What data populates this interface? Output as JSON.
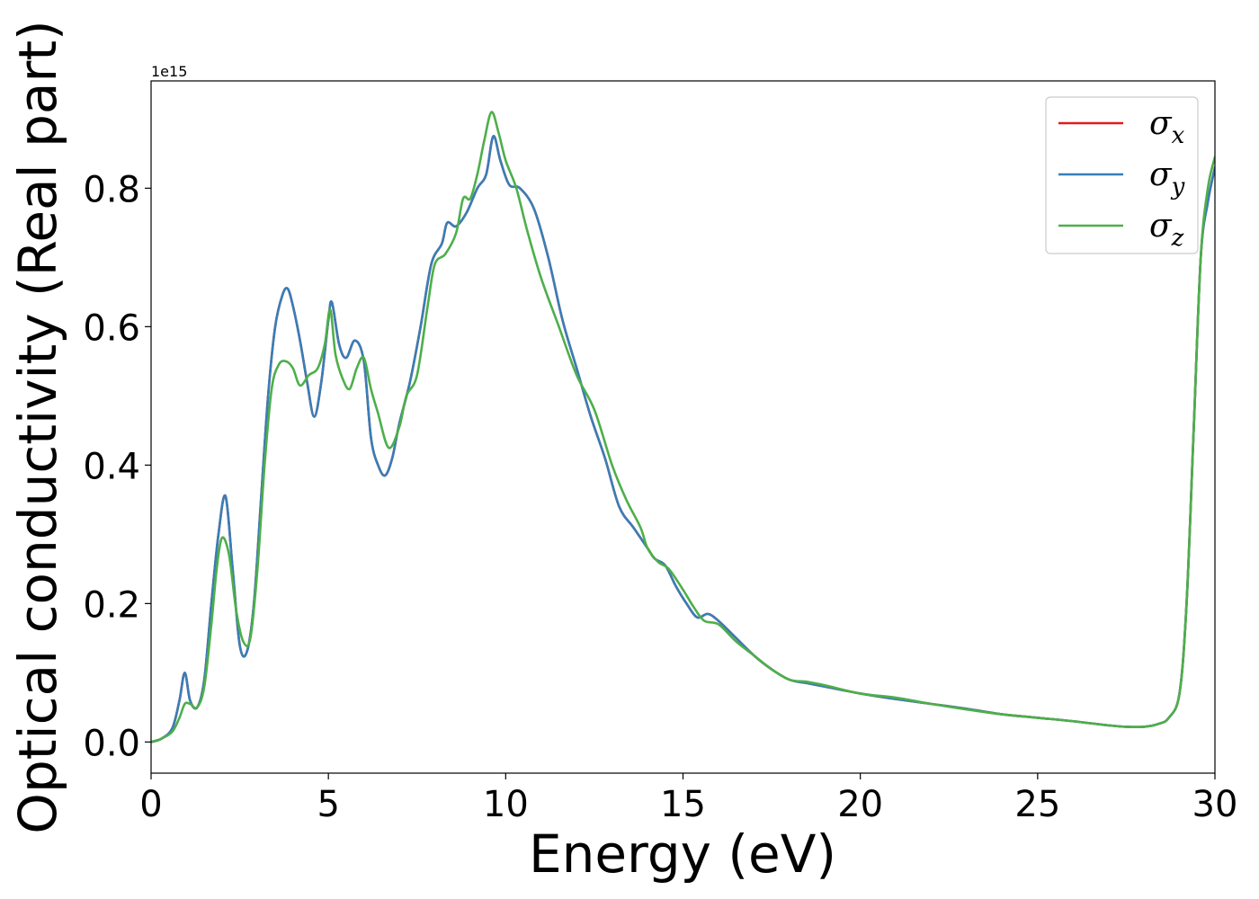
{
  "chart_data": {
    "type": "line",
    "xlabel": "Energy (eV)",
    "ylabel": "Optical conductivity (Real part)",
    "y_offset_text": "1e15",
    "xlim": [
      0,
      30
    ],
    "ylim": [
      -0.045,
      0.955
    ],
    "xticks": [
      0,
      5,
      10,
      15,
      20,
      25,
      30
    ],
    "xtick_labels": [
      "0",
      "5",
      "10",
      "15",
      "20",
      "25",
      "30"
    ],
    "yticks": [
      0.0,
      0.2,
      0.4,
      0.6,
      0.8
    ],
    "ytick_labels": [
      "0.0",
      "0.2",
      "0.4",
      "0.6",
      "0.8"
    ],
    "grid": false,
    "legend_position": "top-right",
    "series": [
      {
        "name": "σx",
        "label_base": "σ",
        "label_sub": "x",
        "color": "#e41a1c",
        "x": [
          0,
          0.3,
          0.6,
          0.8,
          0.95,
          1.1,
          1.3,
          1.5,
          1.7,
          1.9,
          2.1,
          2.3,
          2.5,
          2.7,
          2.9,
          3.1,
          3.3,
          3.5,
          3.7,
          3.85,
          4.0,
          4.2,
          4.4,
          4.6,
          4.8,
          5.0,
          5.1,
          5.3,
          5.5,
          5.75,
          6.0,
          6.2,
          6.4,
          6.6,
          6.8,
          7.0,
          7.3,
          7.6,
          7.9,
          8.2,
          8.35,
          8.6,
          8.9,
          9.2,
          9.45,
          9.65,
          9.85,
          10.1,
          10.4,
          10.8,
          11.2,
          11.6,
          12.0,
          12.4,
          12.8,
          13.2,
          13.6,
          14.0,
          14.2,
          14.5,
          14.8,
          15.1,
          15.4,
          15.7,
          16.0,
          16.5,
          17.0,
          17.5,
          18.0,
          18.5,
          19.0,
          20.0,
          21.0,
          22.0,
          23.0,
          24.0,
          25.0,
          26.0,
          27.0,
          27.5,
          28.0,
          28.4,
          28.7,
          29.0,
          29.2,
          29.4,
          29.6,
          29.8,
          30.0
        ],
        "values": [
          0.0,
          0.005,
          0.02,
          0.06,
          0.1,
          0.06,
          0.05,
          0.09,
          0.2,
          0.3,
          0.355,
          0.25,
          0.14,
          0.13,
          0.2,
          0.35,
          0.5,
          0.6,
          0.645,
          0.655,
          0.63,
          0.58,
          0.52,
          0.47,
          0.52,
          0.61,
          0.635,
          0.575,
          0.555,
          0.58,
          0.55,
          0.44,
          0.4,
          0.385,
          0.41,
          0.46,
          0.52,
          0.6,
          0.69,
          0.72,
          0.75,
          0.745,
          0.765,
          0.8,
          0.82,
          0.875,
          0.84,
          0.805,
          0.8,
          0.77,
          0.7,
          0.61,
          0.54,
          0.47,
          0.41,
          0.34,
          0.31,
          0.28,
          0.265,
          0.255,
          0.225,
          0.2,
          0.18,
          0.185,
          0.175,
          0.15,
          0.125,
          0.105,
          0.09,
          0.085,
          0.08,
          0.07,
          0.062,
          0.055,
          0.048,
          0.04,
          0.035,
          0.03,
          0.024,
          0.022,
          0.022,
          0.026,
          0.035,
          0.07,
          0.2,
          0.45,
          0.7,
          0.78,
          0.83
        ]
      },
      {
        "name": "σy",
        "label_base": "σ",
        "label_sub": "y",
        "color": "#377eb8",
        "x": [
          0,
          0.3,
          0.6,
          0.8,
          0.95,
          1.1,
          1.3,
          1.5,
          1.7,
          1.9,
          2.1,
          2.3,
          2.5,
          2.7,
          2.9,
          3.1,
          3.3,
          3.5,
          3.7,
          3.85,
          4.0,
          4.2,
          4.4,
          4.6,
          4.8,
          5.0,
          5.1,
          5.3,
          5.5,
          5.75,
          6.0,
          6.2,
          6.4,
          6.6,
          6.8,
          7.0,
          7.3,
          7.6,
          7.9,
          8.2,
          8.35,
          8.6,
          8.9,
          9.2,
          9.45,
          9.65,
          9.85,
          10.1,
          10.4,
          10.8,
          11.2,
          11.6,
          12.0,
          12.4,
          12.8,
          13.2,
          13.6,
          14.0,
          14.2,
          14.5,
          14.8,
          15.1,
          15.4,
          15.7,
          16.0,
          16.5,
          17.0,
          17.5,
          18.0,
          18.5,
          19.0,
          20.0,
          21.0,
          22.0,
          23.0,
          24.0,
          25.0,
          26.0,
          27.0,
          27.5,
          28.0,
          28.4,
          28.7,
          29.0,
          29.2,
          29.4,
          29.6,
          29.8,
          30.0
        ],
        "values": [
          0.0,
          0.005,
          0.02,
          0.06,
          0.1,
          0.06,
          0.05,
          0.09,
          0.2,
          0.3,
          0.355,
          0.25,
          0.14,
          0.13,
          0.2,
          0.35,
          0.5,
          0.6,
          0.645,
          0.655,
          0.63,
          0.58,
          0.52,
          0.47,
          0.52,
          0.61,
          0.635,
          0.575,
          0.555,
          0.58,
          0.55,
          0.44,
          0.4,
          0.385,
          0.41,
          0.46,
          0.52,
          0.6,
          0.69,
          0.72,
          0.75,
          0.745,
          0.765,
          0.8,
          0.82,
          0.875,
          0.84,
          0.805,
          0.8,
          0.77,
          0.7,
          0.61,
          0.54,
          0.47,
          0.41,
          0.34,
          0.31,
          0.28,
          0.265,
          0.255,
          0.225,
          0.2,
          0.18,
          0.185,
          0.175,
          0.15,
          0.125,
          0.105,
          0.09,
          0.085,
          0.08,
          0.07,
          0.062,
          0.055,
          0.048,
          0.04,
          0.035,
          0.03,
          0.024,
          0.022,
          0.022,
          0.026,
          0.035,
          0.07,
          0.2,
          0.45,
          0.7,
          0.78,
          0.83
        ]
      },
      {
        "name": "σz",
        "label_base": "σ",
        "label_sub": "z",
        "color": "#4daf4a",
        "x": [
          0,
          0.3,
          0.6,
          0.8,
          0.95,
          1.1,
          1.3,
          1.5,
          1.7,
          1.85,
          2.0,
          2.2,
          2.4,
          2.6,
          2.8,
          3.0,
          3.2,
          3.4,
          3.6,
          3.8,
          4.0,
          4.2,
          4.45,
          4.7,
          4.9,
          5.05,
          5.2,
          5.4,
          5.6,
          5.8,
          6.0,
          6.2,
          6.4,
          6.7,
          7.0,
          7.2,
          7.5,
          7.8,
          8.0,
          8.3,
          8.6,
          8.8,
          9.0,
          9.2,
          9.4,
          9.6,
          9.8,
          10.0,
          10.3,
          10.6,
          11.0,
          11.5,
          12.0,
          12.5,
          13.0,
          13.4,
          13.8,
          14.0,
          14.3,
          14.6,
          15.0,
          15.3,
          15.6,
          16.0,
          16.5,
          17.0,
          17.5,
          18.0,
          18.5,
          19.0,
          20.0,
          21.0,
          22.0,
          23.0,
          24.0,
          25.0,
          26.0,
          27.0,
          27.5,
          28.0,
          28.4,
          28.7,
          29.0,
          29.2,
          29.4,
          29.6,
          29.8,
          30.0
        ],
        "values": [
          0.0,
          0.005,
          0.015,
          0.035,
          0.055,
          0.055,
          0.05,
          0.08,
          0.17,
          0.25,
          0.295,
          0.27,
          0.19,
          0.145,
          0.15,
          0.25,
          0.4,
          0.51,
          0.545,
          0.55,
          0.54,
          0.515,
          0.53,
          0.54,
          0.575,
          0.625,
          0.56,
          0.525,
          0.51,
          0.54,
          0.555,
          0.51,
          0.475,
          0.425,
          0.455,
          0.5,
          0.53,
          0.63,
          0.69,
          0.705,
          0.735,
          0.785,
          0.785,
          0.82,
          0.87,
          0.91,
          0.88,
          0.84,
          0.8,
          0.74,
          0.67,
          0.6,
          0.53,
          0.48,
          0.4,
          0.35,
          0.31,
          0.28,
          0.26,
          0.25,
          0.22,
          0.195,
          0.175,
          0.17,
          0.145,
          0.125,
          0.105,
          0.09,
          0.087,
          0.082,
          0.07,
          0.064,
          0.055,
          0.047,
          0.04,
          0.035,
          0.03,
          0.024,
          0.022,
          0.022,
          0.026,
          0.035,
          0.07,
          0.2,
          0.45,
          0.7,
          0.8,
          0.845
        ]
      }
    ]
  }
}
